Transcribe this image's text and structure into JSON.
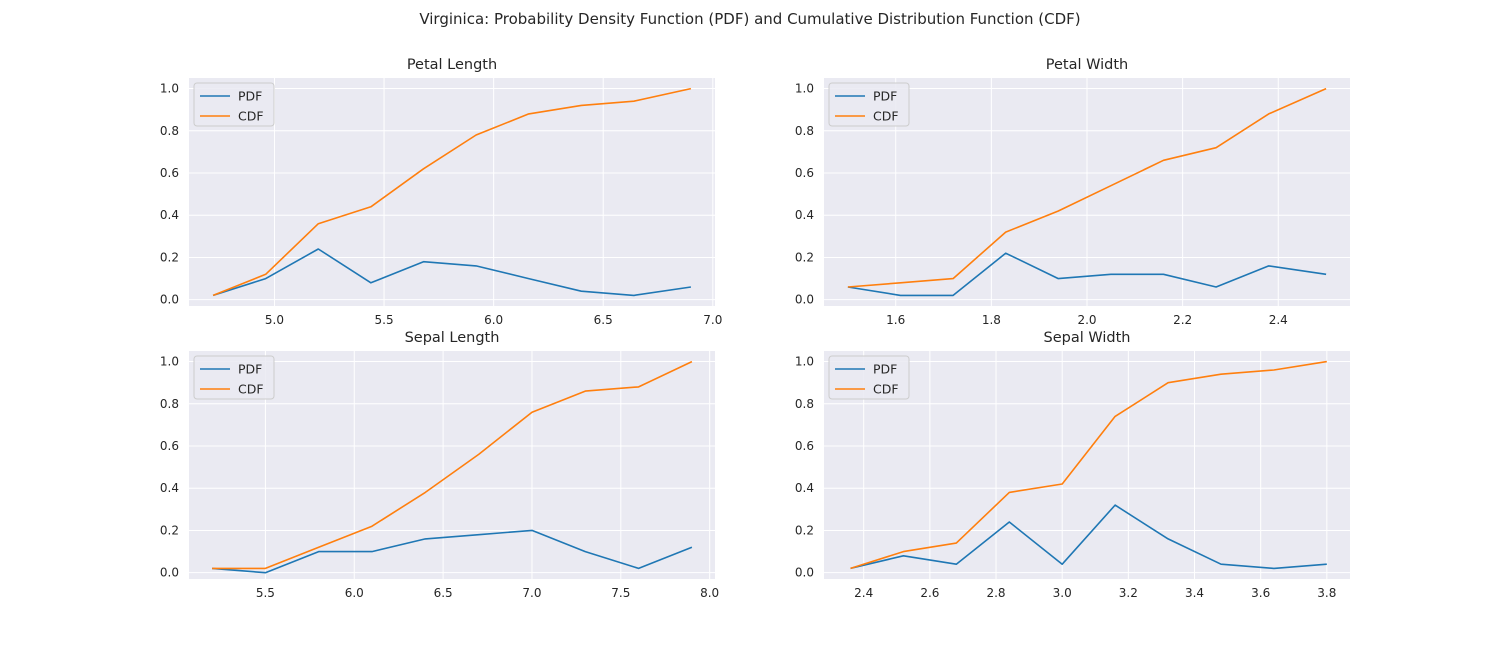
{
  "figure": {
    "title": "Virginica: Probability Density Function (PDF) and Cumulative Distribution Function (CDF)"
  },
  "style": {
    "background": "#eaeaf2",
    "grid": "#ffffff",
    "pdf_color": "#1f77b4",
    "cdf_color": "#ff7f0e"
  },
  "chart_data": [
    {
      "type": "line",
      "title": "Petal Length",
      "xlabel": "",
      "ylabel": "",
      "grid": true,
      "legend_position": "upper-left",
      "xlim": [
        4.61,
        7.01
      ],
      "ylim": [
        -0.03,
        1.05
      ],
      "xticks": [
        5.0,
        5.5,
        6.0,
        6.5,
        7.0
      ],
      "yticks": [
        0.0,
        0.2,
        0.4,
        0.6,
        0.8,
        1.0
      ],
      "x": [
        4.72,
        4.96,
        5.2,
        5.44,
        5.68,
        5.92,
        6.16,
        6.4,
        6.64,
        6.9
      ],
      "series": [
        {
          "name": "PDF",
          "values": [
            0.02,
            0.1,
            0.24,
            0.08,
            0.18,
            0.16,
            0.1,
            0.04,
            0.02,
            0.06
          ]
        },
        {
          "name": "CDF",
          "values": [
            0.02,
            0.12,
            0.36,
            0.44,
            0.62,
            0.78,
            0.88,
            0.92,
            0.94,
            1.0
          ]
        }
      ]
    },
    {
      "type": "line",
      "title": "Petal Width",
      "xlabel": "",
      "ylabel": "",
      "grid": true,
      "legend_position": "upper-left",
      "xlim": [
        1.45,
        2.55
      ],
      "ylim": [
        -0.03,
        1.05
      ],
      "xticks": [
        1.6,
        1.8,
        2.0,
        2.2,
        2.4
      ],
      "yticks": [
        0.0,
        0.2,
        0.4,
        0.6,
        0.8,
        1.0
      ],
      "x": [
        1.5,
        1.61,
        1.72,
        1.83,
        1.94,
        2.05,
        2.16,
        2.27,
        2.38,
        2.5
      ],
      "series": [
        {
          "name": "PDF",
          "values": [
            0.06,
            0.02,
            0.02,
            0.22,
            0.1,
            0.12,
            0.12,
            0.06,
            0.16,
            0.12
          ]
        },
        {
          "name": "CDF",
          "values": [
            0.06,
            0.08,
            0.1,
            0.32,
            0.42,
            0.54,
            0.66,
            0.72,
            0.88,
            1.0
          ]
        }
      ]
    },
    {
      "type": "line",
      "title": "Sepal Length",
      "xlabel": "",
      "ylabel": "",
      "grid": true,
      "legend_position": "upper-left",
      "xlim": [
        5.07,
        8.03
      ],
      "ylim": [
        -0.03,
        1.05
      ],
      "xticks": [
        5.5,
        6.0,
        6.5,
        7.0,
        7.5,
        8.0
      ],
      "yticks": [
        0.0,
        0.2,
        0.4,
        0.6,
        0.8,
        1.0
      ],
      "x": [
        5.2,
        5.5,
        5.8,
        6.1,
        6.4,
        6.7,
        7.0,
        7.3,
        7.6,
        7.9
      ],
      "series": [
        {
          "name": "PDF",
          "values": [
            0.02,
            0.0,
            0.1,
            0.1,
            0.16,
            0.18,
            0.2,
            0.1,
            0.02,
            0.12
          ]
        },
        {
          "name": "CDF",
          "values": [
            0.02,
            0.02,
            0.12,
            0.22,
            0.38,
            0.56,
            0.76,
            0.86,
            0.88,
            1.0
          ]
        }
      ]
    },
    {
      "type": "line",
      "title": "Sepal Width",
      "xlabel": "",
      "ylabel": "",
      "grid": true,
      "legend_position": "upper-left",
      "xlim": [
        2.28,
        3.87
      ],
      "ylim": [
        -0.03,
        1.05
      ],
      "xticks": [
        2.4,
        2.6,
        2.8,
        3.0,
        3.2,
        3.4,
        3.6,
        3.8
      ],
      "yticks": [
        0.0,
        0.2,
        0.4,
        0.6,
        0.8,
        1.0
      ],
      "x": [
        2.36,
        2.52,
        2.68,
        2.84,
        3.0,
        3.16,
        3.32,
        3.48,
        3.64,
        3.8
      ],
      "series": [
        {
          "name": "PDF",
          "values": [
            0.02,
            0.08,
            0.04,
            0.24,
            0.04,
            0.32,
            0.16,
            0.04,
            0.02,
            0.04
          ]
        },
        {
          "name": "CDF",
          "values": [
            0.02,
            0.1,
            0.14,
            0.38,
            0.42,
            0.74,
            0.9,
            0.94,
            0.96,
            1.0
          ]
        }
      ]
    }
  ]
}
